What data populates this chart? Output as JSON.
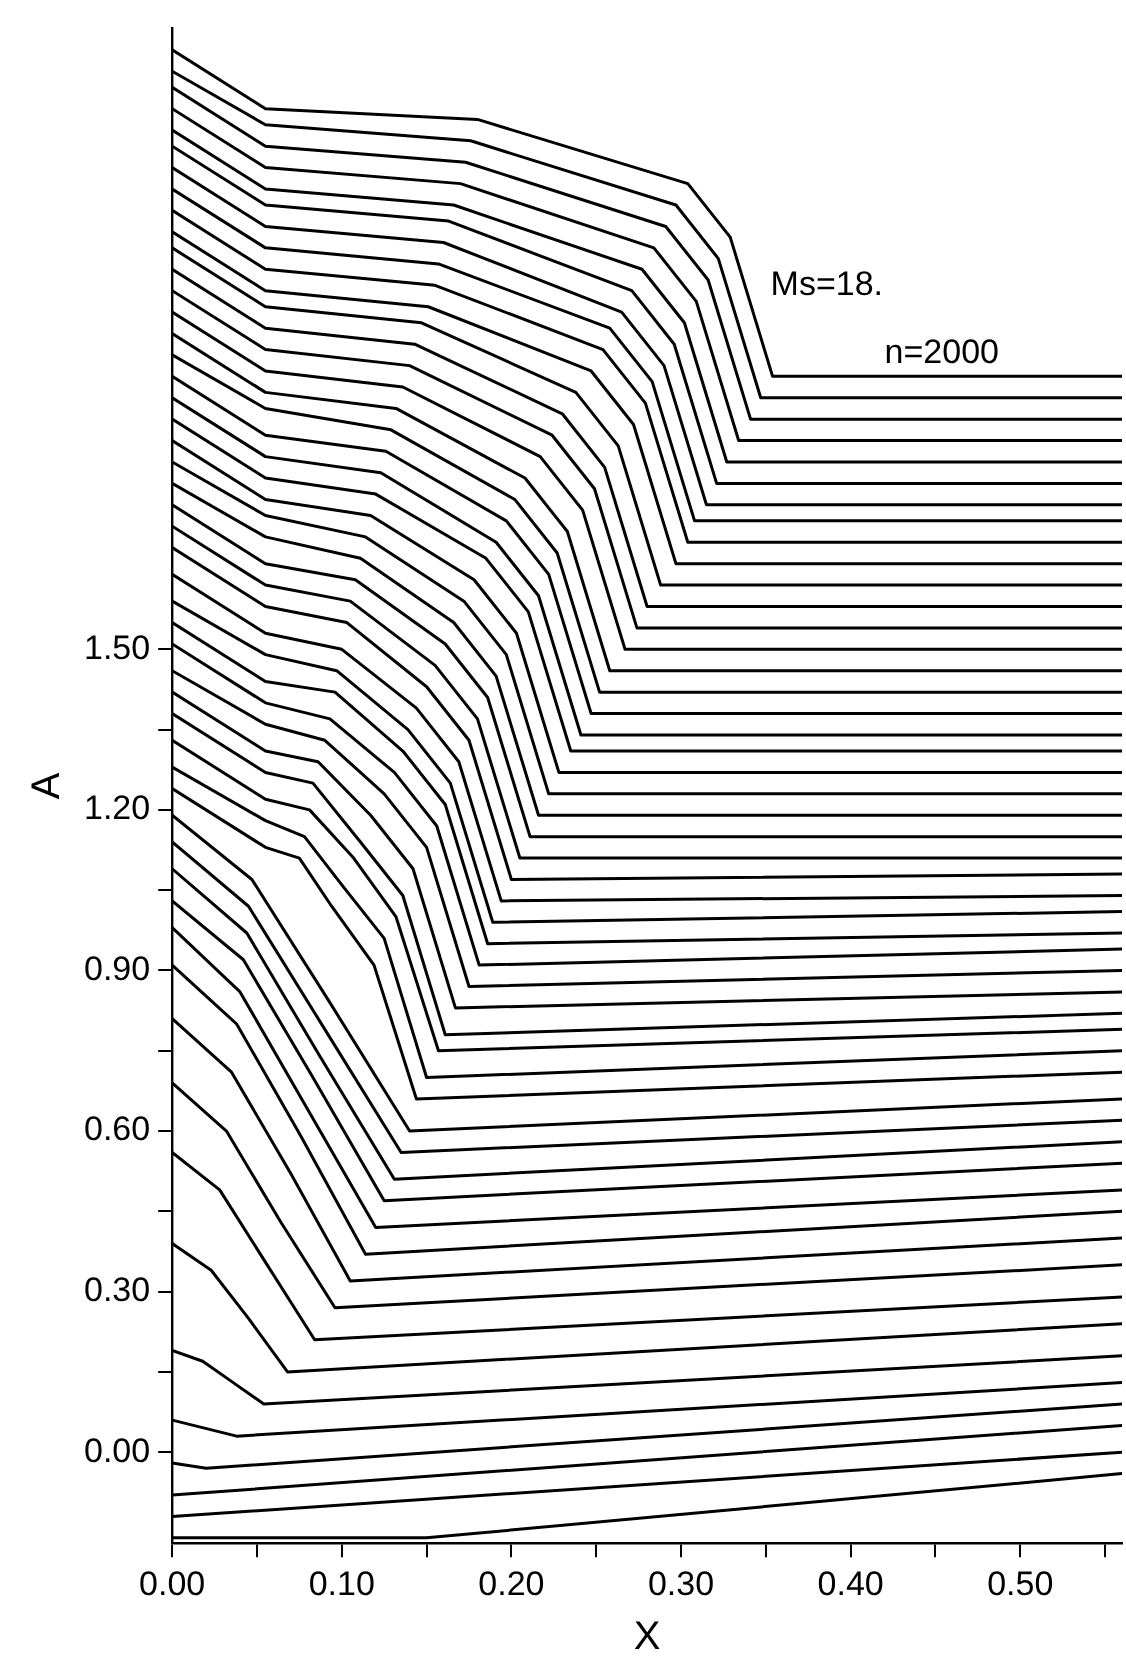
{
  "chart_data": {
    "type": "line",
    "xlabel": "X",
    "ylabel": "A",
    "annotations": [
      "Ms=18.",
      "n=2000"
    ],
    "xlim": [
      0,
      0.56
    ],
    "ylim": [
      -0.17,
      2.66
    ],
    "xticks": [
      {
        "value": 0,
        "label": "0.00"
      },
      {
        "value": 0.05,
        "label": null
      },
      {
        "value": 0.1,
        "label": "0.10"
      },
      {
        "value": 0.15,
        "label": null
      },
      {
        "value": 0.2,
        "label": "0.20"
      },
      {
        "value": 0.25,
        "label": null
      },
      {
        "value": 0.3,
        "label": "0.30"
      },
      {
        "value": 0.35,
        "label": null
      },
      {
        "value": 0.4,
        "label": "0.40"
      },
      {
        "value": 0.45,
        "label": null
      },
      {
        "value": 0.5,
        "label": "0.50"
      },
      {
        "value": 0.55,
        "label": null
      }
    ],
    "yticks": [
      {
        "value": 0,
        "label": "0.00"
      },
      {
        "value": 0.15,
        "label": null
      },
      {
        "value": 0.3,
        "label": "0.30"
      },
      {
        "value": 0.45,
        "label": null
      },
      {
        "value": 0.6,
        "label": "0.60"
      },
      {
        "value": 0.75,
        "label": null
      },
      {
        "value": 0.9,
        "label": "0.90"
      },
      {
        "value": 1.05,
        "label": null
      },
      {
        "value": 1.2,
        "label": "1.20"
      },
      {
        "value": 1.35,
        "label": null
      },
      {
        "value": 1.5,
        "label": "1.50"
      }
    ],
    "series": [
      {
        "color": "#000000",
        "x": [
          0,
          0.055,
          0.18,
          0.304,
          0.329,
          0.354,
          0.56
        ],
        "values": [
          2.62,
          2.51,
          2.49,
          2.37,
          2.27,
          2.01,
          2.01
        ]
      },
      {
        "color": "#000000",
        "x": [
          0,
          0.055,
          0.176,
          0.297,
          0.322,
          0.347,
          0.56
        ],
        "values": [
          2.58,
          2.48,
          2.45,
          2.33,
          2.23,
          1.97,
          1.97
        ]
      },
      {
        "color": "#000000",
        "x": [
          0,
          0.055,
          0.173,
          0.291,
          0.316,
          0.341,
          0.56
        ],
        "values": [
          2.55,
          2.44,
          2.41,
          2.29,
          2.19,
          1.93,
          1.93
        ]
      },
      {
        "color": "#000000",
        "x": [
          0,
          0.055,
          0.17,
          0.284,
          0.309,
          0.334,
          0.56
        ],
        "values": [
          2.51,
          2.4,
          2.37,
          2.25,
          2.15,
          1.89,
          1.89
        ]
      },
      {
        "color": "#000000",
        "x": [
          0,
          0.055,
          0.166,
          0.277,
          0.302,
          0.327,
          0.56
        ],
        "values": [
          2.47,
          2.36,
          2.33,
          2.21,
          2.11,
          1.85,
          1.85
        ]
      },
      {
        "color": "#000000",
        "x": [
          0,
          0.055,
          0.163,
          0.271,
          0.296,
          0.321,
          0.56
        ],
        "values": [
          2.44,
          2.33,
          2.3,
          2.17,
          2.07,
          1.81,
          1.81
        ]
      },
      {
        "color": "#000000",
        "x": [
          0,
          0.055,
          0.16,
          0.265,
          0.29,
          0.315,
          0.56
        ],
        "values": [
          2.4,
          2.29,
          2.26,
          2.13,
          2.03,
          1.77,
          1.77
        ]
      },
      {
        "color": "#000000",
        "x": [
          0,
          0.055,
          0.157,
          0.258,
          0.283,
          0.308,
          0.56
        ],
        "values": [
          2.36,
          2.25,
          2.22,
          2.1,
          2.0,
          1.74,
          1.74
        ]
      },
      {
        "color": "#000000",
        "x": [
          0,
          0.055,
          0.155,
          0.254,
          0.279,
          0.304,
          0.56
        ],
        "values": [
          2.32,
          2.21,
          2.18,
          2.06,
          1.96,
          1.7,
          1.7
        ]
      },
      {
        "color": "#000000",
        "x": [
          0,
          0.055,
          0.151,
          0.247,
          0.272,
          0.297,
          0.56
        ],
        "values": [
          2.28,
          2.17,
          2.14,
          2.02,
          1.92,
          1.66,
          1.66
        ]
      },
      {
        "color": "#000000",
        "x": [
          0,
          0.055,
          0.147,
          0.238,
          0.263,
          0.288,
          0.56
        ],
        "values": [
          2.25,
          2.14,
          2.11,
          1.98,
          1.88,
          1.62,
          1.62
        ]
      },
      {
        "color": "#000000",
        "x": [
          0,
          0.055,
          0.143,
          0.23,
          0.255,
          0.28,
          0.56
        ],
        "values": [
          2.21,
          2.1,
          2.07,
          1.94,
          1.84,
          1.58,
          1.58
        ]
      },
      {
        "color": "#000000",
        "x": [
          0,
          0.055,
          0.14,
          0.224,
          0.249,
          0.274,
          0.56
        ],
        "values": [
          2.17,
          2.06,
          2.03,
          1.9,
          1.8,
          1.54,
          1.54
        ]
      },
      {
        "color": "#000000",
        "x": [
          0,
          0.055,
          0.136,
          0.217,
          0.242,
          0.267,
          0.56
        ],
        "values": [
          2.13,
          2.02,
          1.99,
          1.86,
          1.76,
          1.5,
          1.5
        ]
      },
      {
        "color": "#000000",
        "x": [
          0,
          0.055,
          0.132,
          0.208,
          0.233,
          0.258,
          0.56
        ],
        "values": [
          2.09,
          1.98,
          1.95,
          1.82,
          1.72,
          1.46,
          1.46
        ]
      },
      {
        "color": "#000000",
        "x": [
          0,
          0.055,
          0.129,
          0.202,
          0.227,
          0.252,
          0.56
        ],
        "values": [
          2.05,
          1.95,
          1.91,
          1.78,
          1.68,
          1.42,
          1.42
        ]
      },
      {
        "color": "#000000",
        "x": [
          0,
          0.055,
          0.126,
          0.197,
          0.222,
          0.247,
          0.56
        ],
        "values": [
          2.01,
          1.9,
          1.87,
          1.74,
          1.64,
          1.38,
          1.38
        ]
      },
      {
        "color": "#000000",
        "x": [
          0,
          0.055,
          0.123,
          0.191,
          0.216,
          0.241,
          0.56
        ],
        "values": [
          1.97,
          1.86,
          1.83,
          1.7,
          1.6,
          1.34,
          1.34
        ]
      },
      {
        "color": "#000000",
        "x": [
          0,
          0.055,
          0.12,
          0.185,
          0.21,
          0.235,
          0.56
        ],
        "values": [
          1.93,
          1.82,
          1.79,
          1.67,
          1.57,
          1.31,
          1.31
        ]
      },
      {
        "color": "#000000",
        "x": [
          0,
          0.055,
          0.117,
          0.178,
          0.203,
          0.228,
          0.56
        ],
        "values": [
          1.89,
          1.78,
          1.75,
          1.63,
          1.53,
          1.27,
          1.27
        ]
      },
      {
        "color": "#000000",
        "x": [
          0,
          0.055,
          0.114,
          0.172,
          0.197,
          0.222,
          0.56
        ],
        "values": [
          1.85,
          1.75,
          1.71,
          1.59,
          1.49,
          1.23,
          1.23
        ]
      },
      {
        "color": "#000000",
        "x": [
          0,
          0.055,
          0.111,
          0.166,
          0.191,
          0.216,
          0.56
        ],
        "values": [
          1.81,
          1.71,
          1.67,
          1.55,
          1.45,
          1.19,
          1.19
        ]
      },
      {
        "color": "#000000",
        "x": [
          0,
          0.055,
          0.108,
          0.161,
          0.186,
          0.211,
          0.56
        ],
        "values": [
          1.77,
          1.66,
          1.63,
          1.51,
          1.41,
          1.15,
          1.15
        ]
      },
      {
        "color": "#000000",
        "x": [
          0,
          0.055,
          0.105,
          0.155,
          0.18,
          0.205,
          0.56
        ],
        "values": [
          1.73,
          1.62,
          1.59,
          1.47,
          1.37,
          1.11,
          1.11
        ]
      },
      {
        "color": "#000000",
        "x": [
          0,
          0.055,
          0.103,
          0.15,
          0.175,
          0.2,
          0.56
        ],
        "values": [
          1.69,
          1.58,
          1.55,
          1.43,
          1.33,
          1.07,
          1.08
        ]
      },
      {
        "color": "#000000",
        "x": [
          0,
          0.055,
          0.1,
          0.144,
          0.169,
          0.194,
          0.56
        ],
        "values": [
          1.64,
          1.53,
          1.5,
          1.39,
          1.29,
          1.03,
          1.04
        ]
      },
      {
        "color": "#000000",
        "x": [
          0,
          0.055,
          0.097,
          0.139,
          0.164,
          0.189,
          0.56
        ],
        "values": [
          1.59,
          1.49,
          1.46,
          1.35,
          1.25,
          0.99,
          1.01
        ]
      },
      {
        "color": "#000000",
        "x": [
          0,
          0.055,
          0.096,
          0.136,
          0.161,
          0.186,
          0.56
        ],
        "values": [
          1.55,
          1.44,
          1.42,
          1.31,
          1.21,
          0.95,
          0.97
        ]
      },
      {
        "color": "#000000",
        "x": [
          0,
          0.055,
          0.093,
          0.131,
          0.156,
          0.181,
          0.56
        ],
        "values": [
          1.51,
          1.4,
          1.37,
          1.27,
          1.17,
          0.91,
          0.94
        ]
      },
      {
        "color": "#000000",
        "x": [
          0,
          0.055,
          0.09,
          0.125,
          0.15,
          0.175,
          0.56
        ],
        "values": [
          1.46,
          1.36,
          1.33,
          1.23,
          1.13,
          0.87,
          0.9
        ]
      },
      {
        "color": "#000000",
        "x": [
          0,
          0.055,
          0.086,
          0.117,
          0.142,
          0.167,
          0.56
        ],
        "values": [
          1.42,
          1.31,
          1.29,
          1.19,
          1.09,
          0.83,
          0.86
        ]
      },
      {
        "color": "#000000",
        "x": [
          0,
          0.055,
          0.083,
          0.111,
          0.136,
          0.161,
          0.56
        ],
        "values": [
          1.38,
          1.27,
          1.25,
          1.14,
          1.04,
          0.78,
          0.82
        ]
      },
      {
        "color": "#000000",
        "x": [
          0,
          0.055,
          0.081,
          0.107,
          0.132,
          0.157,
          0.56
        ],
        "values": [
          1.33,
          1.22,
          1.2,
          1.11,
          1.0,
          0.75,
          0.79
        ]
      },
      {
        "color": "#000000",
        "x": [
          0,
          0.055,
          0.078,
          0.1,
          0.125,
          0.15,
          0.56
        ],
        "values": [
          1.28,
          1.18,
          1.15,
          1.06,
          0.96,
          0.7,
          0.75
        ]
      },
      {
        "color": "#000000",
        "x": [
          0,
          0.055,
          0.075,
          0.094,
          0.119,
          0.144,
          0.56
        ],
        "values": [
          1.24,
          1.13,
          1.11,
          1.02,
          0.91,
          0.66,
          0.71
        ]
      },
      {
        "color": "#000000",
        "x": [
          0,
          0.047,
          0.093,
          0.14,
          0.56
        ],
        "values": [
          1.19,
          1.07,
          0.84,
          0.6,
          0.66
        ]
      },
      {
        "color": "#000000",
        "x": [
          0,
          0.045,
          0.09,
          0.135,
          0.56
        ],
        "values": [
          1.14,
          1.02,
          0.79,
          0.56,
          0.62
        ]
      },
      {
        "color": "#000000",
        "x": [
          0,
          0.044,
          0.087,
          0.131,
          0.56
        ],
        "values": [
          1.09,
          0.97,
          0.74,
          0.51,
          0.58
        ]
      },
      {
        "color": "#000000",
        "x": [
          0,
          0.042,
          0.083,
          0.125,
          0.56
        ],
        "values": [
          1.03,
          0.92,
          0.7,
          0.47,
          0.54
        ]
      },
      {
        "color": "#000000",
        "x": [
          0,
          0.04,
          0.08,
          0.12,
          0.56
        ],
        "values": [
          0.98,
          0.86,
          0.64,
          0.42,
          0.49
        ]
      },
      {
        "color": "#000000",
        "x": [
          0,
          0.038,
          0.076,
          0.114,
          0.56
        ],
        "values": [
          0.91,
          0.8,
          0.59,
          0.37,
          0.45
        ]
      },
      {
        "color": "#000000",
        "x": [
          0,
          0.035,
          0.07,
          0.105,
          0.56
        ],
        "values": [
          0.81,
          0.71,
          0.52,
          0.32,
          0.4
        ]
      },
      {
        "color": "#000000",
        "x": [
          0,
          0.032,
          0.064,
          0.096,
          0.56
        ],
        "values": [
          0.69,
          0.6,
          0.43,
          0.27,
          0.35
        ]
      },
      {
        "color": "#000000",
        "x": [
          0,
          0.028,
          0.056,
          0.084,
          0.56
        ],
        "values": [
          0.56,
          0.49,
          0.35,
          0.21,
          0.29
        ]
      },
      {
        "color": "#000000",
        "x": [
          0,
          0.023,
          0.045,
          0.068,
          0.56
        ],
        "values": [
          0.39,
          0.34,
          0.25,
          0.15,
          0.24
        ]
      },
      {
        "color": "#000000",
        "x": [
          0,
          0.018,
          0.036,
          0.054,
          0.56
        ],
        "values": [
          0.19,
          0.17,
          0.13,
          0.09,
          0.18
        ]
      },
      {
        "color": "#000000",
        "x": [
          0,
          0.038,
          0.56
        ],
        "values": [
          0.06,
          0.03,
          0.13
        ]
      },
      {
        "color": "#000000",
        "x": [
          0,
          0.02,
          0.56
        ],
        "values": [
          -0.02,
          -0.03,
          0.09
        ]
      },
      {
        "color": "#000000",
        "x": [
          0,
          0.56
        ],
        "values": [
          -0.08,
          0.05
        ]
      },
      {
        "color": "#000000",
        "x": [
          0,
          0.56
        ],
        "values": [
          -0.12,
          0.0
        ]
      },
      {
        "color": "#000000",
        "x": [
          0,
          0.15,
          0.56
        ],
        "values": [
          -0.16,
          -0.16,
          -0.04
        ]
      }
    ]
  }
}
